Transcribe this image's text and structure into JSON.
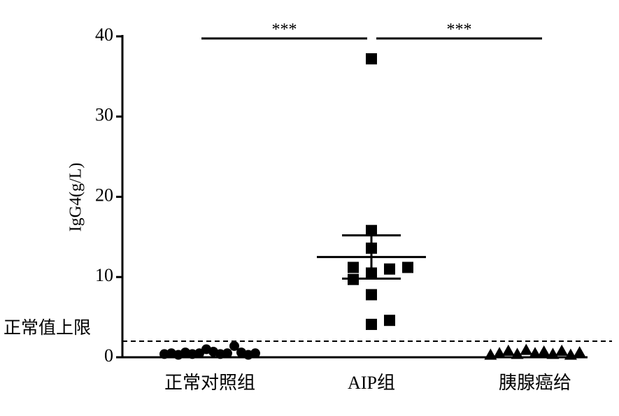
{
  "chart_data": {
    "type": "dot",
    "ylabel": "IgG4(g/L)",
    "categories": [
      "正常对照组",
      "AIP组",
      "胰腺癌给"
    ],
    "ylim": [
      0,
      40
    ],
    "yticks": [
      0,
      10,
      20,
      30,
      40
    ],
    "color": "#000000",
    "groups": [
      {
        "marker": "circle",
        "values": [
          0.4,
          0.5,
          0.3,
          0.6,
          0.4,
          0.5,
          1.0,
          0.7,
          0.4,
          0.5,
          1.4,
          0.6,
          0.3,
          0.5
        ]
      },
      {
        "marker": "square",
        "values": [
          37.2,
          15.8,
          13.6,
          11.2,
          11.0,
          11.2,
          10.5,
          9.7,
          7.8,
          4.1,
          4.6
        ],
        "mean": 12.5,
        "sem": 2.7
      },
      {
        "marker": "triangle",
        "values": [
          0.3,
          0.5,
          0.8,
          0.4,
          0.9,
          0.5,
          0.7,
          0.4,
          0.8,
          0.3,
          0.6
        ]
      }
    ],
    "reference": {
      "value": 2.0,
      "label": "正常值上限"
    },
    "significance": [
      {
        "from": 0,
        "to": 1,
        "label": "***"
      },
      {
        "from": 1,
        "to": 2,
        "label": "***"
      }
    ]
  }
}
